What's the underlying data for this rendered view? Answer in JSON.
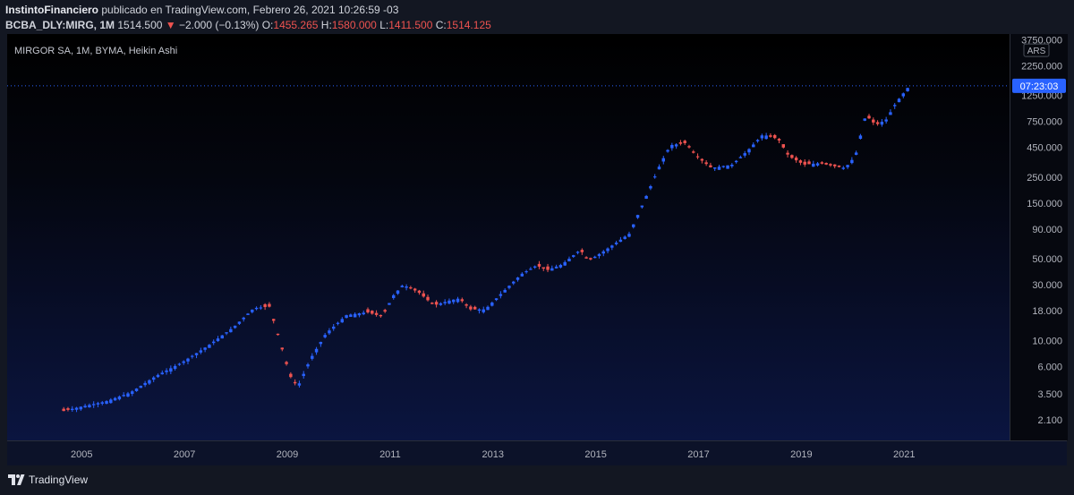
{
  "header": {
    "author": "InstintoFinanciero",
    "published_text": "publicado en TradingView.com, Febrero 26, 2021 10:26:59 -03",
    "symbol": "BCBA_DLY:MIRG, 1M",
    "last": "1514.500",
    "change": "−2.000 (−0.13%)",
    "open_label": "O:",
    "open": "1455.265",
    "high_label": "H:",
    "high": "1580.000",
    "low_label": "L:",
    "low": "1411.500",
    "close_label": "C:",
    "close": "1514.125"
  },
  "legend": "MIRGOR SA, 1M, BYMA, Heikin Ashi",
  "footer": {
    "brand": "TradingView"
  },
  "colors": {
    "up": "#2962ff",
    "down": "#ef5350",
    "bg": "#131722",
    "axis_text": "#b2b5be"
  },
  "chart_data": {
    "type": "candlestick",
    "style": "Heikin Ashi",
    "interval": "1M",
    "scale": "log",
    "currency_label": "ARS",
    "countdown": "07:23:03",
    "last_price_line": 1514.125,
    "ylim": [
      1.4,
      4200
    ],
    "y_ticks": [
      {
        "v": 3750,
        "t": "3750.000"
      },
      {
        "v": 2250,
        "t": "2250.000"
      },
      {
        "v": 1250,
        "t": "1250.000"
      },
      {
        "v": 750,
        "t": "750.000"
      },
      {
        "v": 450,
        "t": "450.000"
      },
      {
        "v": 250,
        "t": "250.000"
      },
      {
        "v": 150,
        "t": "150.000"
      },
      {
        "v": 90,
        "t": "90.000"
      },
      {
        "v": 50,
        "t": "50.000"
      },
      {
        "v": 30,
        "t": "30.000"
      },
      {
        "v": 18,
        "t": "18.000"
      },
      {
        "v": 10,
        "t": "10.000"
      },
      {
        "v": 6,
        "t": "6.000"
      },
      {
        "v": 3.5,
        "t": "3.500"
      },
      {
        "v": 2.1,
        "t": "2.100"
      }
    ],
    "x_range": [
      2003.6,
      2023.1
    ],
    "x_ticks": [
      "2005",
      "2007",
      "2009",
      "2011",
      "2013",
      "2015",
      "2017",
      "2019",
      "2021"
    ],
    "anchors": [
      [
        2004.7,
        2.5
      ],
      [
        2005.0,
        2.7
      ],
      [
        2005.5,
        3.0
      ],
      [
        2006.0,
        3.6
      ],
      [
        2006.5,
        5.0
      ],
      [
        2007.0,
        6.5
      ],
      [
        2007.5,
        9.0
      ],
      [
        2008.0,
        13.0
      ],
      [
        2008.4,
        19.0
      ],
      [
        2008.7,
        19.5
      ],
      [
        2008.9,
        10.0
      ],
      [
        2009.1,
        5.0
      ],
      [
        2009.25,
        4.0
      ],
      [
        2009.5,
        7.0
      ],
      [
        2009.8,
        11.5
      ],
      [
        2010.2,
        16.5
      ],
      [
        2010.6,
        17.5
      ],
      [
        2010.9,
        16.0
      ],
      [
        2011.1,
        24.0
      ],
      [
        2011.3,
        30.0
      ],
      [
        2011.6,
        26.0
      ],
      [
        2011.9,
        20.0
      ],
      [
        2012.2,
        22.0
      ],
      [
        2012.4,
        23.0
      ],
      [
        2012.6,
        18.5
      ],
      [
        2012.9,
        18.5
      ],
      [
        2013.2,
        25.0
      ],
      [
        2013.6,
        37.0
      ],
      [
        2013.9,
        44.0
      ],
      [
        2014.1,
        40.0
      ],
      [
        2014.4,
        45.0
      ],
      [
        2014.75,
        60.0
      ],
      [
        2014.9,
        48.0
      ],
      [
        2015.2,
        58.0
      ],
      [
        2015.7,
        82.0
      ],
      [
        2016.0,
        160.0
      ],
      [
        2016.3,
        320.0
      ],
      [
        2016.5,
        470.0
      ],
      [
        2016.8,
        490.0
      ],
      [
        2017.0,
        380.0
      ],
      [
        2017.3,
        300.0
      ],
      [
        2017.7,
        320.0
      ],
      [
        2018.0,
        420.0
      ],
      [
        2018.3,
        580.0
      ],
      [
        2018.6,
        530.0
      ],
      [
        2018.8,
        380.0
      ],
      [
        2019.1,
        320.0
      ],
      [
        2019.4,
        330.0
      ],
      [
        2019.7,
        310.0
      ],
      [
        2019.9,
        300.0
      ],
      [
        2020.1,
        380.0
      ],
      [
        2020.3,
        850.0
      ],
      [
        2020.5,
        700.0
      ],
      [
        2020.7,
        780.0
      ],
      [
        2020.9,
        1100.0
      ],
      [
        2021.15,
        1514.0
      ]
    ],
    "down_intervals": [
      [
        2004.5,
        2004.8
      ],
      [
        2008.55,
        2009.25
      ],
      [
        2010.6,
        2010.95
      ],
      [
        2011.4,
        2011.95
      ],
      [
        2012.45,
        2012.75
      ],
      [
        2013.95,
        2014.15
      ],
      [
        2014.75,
        2014.95
      ],
      [
        2016.7,
        2017.35
      ],
      [
        2018.45,
        2019.2
      ],
      [
        2019.45,
        2019.85
      ],
      [
        2020.35,
        2020.6
      ]
    ]
  }
}
